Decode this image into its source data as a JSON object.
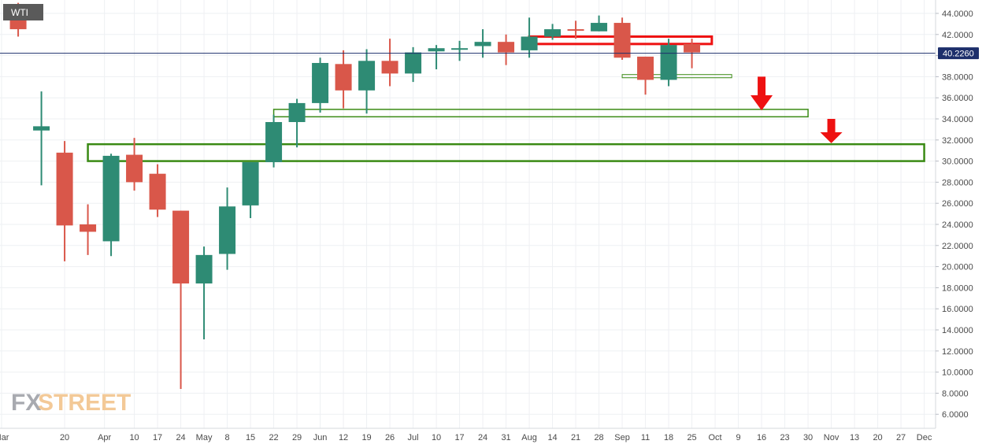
{
  "chart_data": {
    "type": "candlestick",
    "symbol": "WTI",
    "brand": {
      "fx": "FX",
      "street": "STREET"
    },
    "ylim": [
      5,
      45
    ],
    "grid": true,
    "colors": {
      "up": "#2e8b74",
      "down": "#d9574a",
      "zone_red": "#ee1111",
      "zone_green": "#3a8a14",
      "arrow": "#ee1111",
      "price_line": "#1d2f6b"
    },
    "price_line": {
      "value": 40.226,
      "label": "40.2260"
    },
    "yticks": [
      "6.0000",
      "8.0000",
      "10.0000",
      "12.0000",
      "14.0000",
      "16.0000",
      "18.0000",
      "20.0000",
      "22.0000",
      "24.0000",
      "26.0000",
      "28.0000",
      "30.0000",
      "32.0000",
      "34.0000",
      "36.0000",
      "38.0000",
      "40.0000",
      "42.0000",
      "44.0000"
    ],
    "xticks": [
      {
        "label": "Mar",
        "date": "2020-03-01"
      },
      {
        "label": "20",
        "date": "2020-03-20"
      },
      {
        "label": "Apr",
        "date": "2020-04-01"
      },
      {
        "label": "10",
        "date": "2020-04-10"
      },
      {
        "label": "17",
        "date": "2020-04-17"
      },
      {
        "label": "24",
        "date": "2020-04-24"
      },
      {
        "label": "May",
        "date": "2020-05-01"
      },
      {
        "label": "8",
        "date": "2020-05-08"
      },
      {
        "label": "15",
        "date": "2020-05-15"
      },
      {
        "label": "22",
        "date": "2020-05-22"
      },
      {
        "label": "29",
        "date": "2020-05-29"
      },
      {
        "label": "Jun",
        "date": "2020-06-05"
      },
      {
        "label": "12",
        "date": "2020-06-12"
      },
      {
        "label": "19",
        "date": "2020-06-19"
      },
      {
        "label": "26",
        "date": "2020-06-26"
      },
      {
        "label": "Jul",
        "date": "2020-07-03"
      },
      {
        "label": "10",
        "date": "2020-07-10"
      },
      {
        "label": "17",
        "date": "2020-07-17"
      },
      {
        "label": "24",
        "date": "2020-07-24"
      },
      {
        "label": "31",
        "date": "2020-07-31"
      },
      {
        "label": "Aug",
        "date": "2020-08-07"
      },
      {
        "label": "14",
        "date": "2020-08-14"
      },
      {
        "label": "21",
        "date": "2020-08-21"
      },
      {
        "label": "28",
        "date": "2020-08-28"
      },
      {
        "label": "Sep",
        "date": "2020-09-04"
      },
      {
        "label": "11",
        "date": "2020-09-11"
      },
      {
        "label": "18",
        "date": "2020-09-18"
      },
      {
        "label": "25",
        "date": "2020-09-25"
      },
      {
        "label": "Oct",
        "date": "2020-10-02"
      },
      {
        "label": "9",
        "date": "2020-10-09"
      },
      {
        "label": "16",
        "date": "2020-10-16"
      },
      {
        "label": "23",
        "date": "2020-10-23"
      },
      {
        "label": "30",
        "date": "2020-10-30"
      },
      {
        "label": "Nov",
        "date": "2020-11-06"
      },
      {
        "label": "13",
        "date": "2020-11-13"
      },
      {
        "label": "20",
        "date": "2020-11-20"
      },
      {
        "label": "27",
        "date": "2020-11-27"
      },
      {
        "label": "Dec",
        "date": "2020-12-04"
      }
    ],
    "candles": [
      {
        "date": "2020-03-06",
        "open": 44.2,
        "high": 45.0,
        "low": 41.8,
        "close": 42.5
      },
      {
        "date": "2020-03-13",
        "open": 32.9,
        "high": 36.6,
        "low": 27.7,
        "close": 33.3
      },
      {
        "date": "2020-03-20",
        "open": 30.8,
        "high": 31.9,
        "low": 20.5,
        "close": 23.9
      },
      {
        "date": "2020-03-27",
        "open": 24.0,
        "high": 25.9,
        "low": 21.1,
        "close": 23.3
      },
      {
        "date": "2020-04-03",
        "open": 22.4,
        "high": 30.7,
        "low": 21.0,
        "close": 30.5
      },
      {
        "date": "2020-04-10",
        "open": 30.6,
        "high": 32.2,
        "low": 27.2,
        "close": 28.0
      },
      {
        "date": "2020-04-17",
        "open": 28.8,
        "high": 29.7,
        "low": 24.7,
        "close": 25.4
      },
      {
        "date": "2020-04-24",
        "open": 25.3,
        "high": 25.3,
        "low": 8.4,
        "close": 18.4
      },
      {
        "date": "2020-05-01",
        "open": 18.4,
        "high": 21.9,
        "low": 13.1,
        "close": 21.1
      },
      {
        "date": "2020-05-08",
        "open": 21.2,
        "high": 27.5,
        "low": 19.7,
        "close": 25.7
      },
      {
        "date": "2020-05-15",
        "open": 25.8,
        "high": 29.9,
        "low": 24.6,
        "close": 29.9
      },
      {
        "date": "2020-05-22",
        "open": 29.9,
        "high": 34.4,
        "low": 29.4,
        "close": 33.7
      },
      {
        "date": "2020-05-29",
        "open": 33.7,
        "high": 35.9,
        "low": 31.3,
        "close": 35.5
      },
      {
        "date": "2020-06-05",
        "open": 35.5,
        "high": 39.8,
        "low": 34.6,
        "close": 39.3
      },
      {
        "date": "2020-06-12",
        "open": 39.2,
        "high": 40.5,
        "low": 35.0,
        "close": 36.7
      },
      {
        "date": "2020-06-19",
        "open": 36.7,
        "high": 40.6,
        "low": 34.5,
        "close": 39.5
      },
      {
        "date": "2020-06-26",
        "open": 39.5,
        "high": 41.6,
        "low": 37.1,
        "close": 38.3
      },
      {
        "date": "2020-07-03",
        "open": 38.3,
        "high": 40.8,
        "low": 37.5,
        "close": 40.3
      },
      {
        "date": "2020-07-10",
        "open": 40.4,
        "high": 41.0,
        "low": 38.7,
        "close": 40.7
      },
      {
        "date": "2020-07-17",
        "open": 40.7,
        "high": 41.4,
        "low": 39.5,
        "close": 40.7
      },
      {
        "date": "2020-07-24",
        "open": 40.9,
        "high": 42.5,
        "low": 39.8,
        "close": 41.3
      },
      {
        "date": "2020-07-31",
        "open": 41.3,
        "high": 42.0,
        "low": 39.1,
        "close": 40.3
      },
      {
        "date": "2020-08-07",
        "open": 40.5,
        "high": 43.6,
        "low": 39.8,
        "close": 41.8
      },
      {
        "date": "2020-08-14",
        "open": 41.8,
        "high": 43.0,
        "low": 41.5,
        "close": 42.5
      },
      {
        "date": "2020-08-21",
        "open": 42.5,
        "high": 43.3,
        "low": 41.6,
        "close": 42.4
      },
      {
        "date": "2020-08-28",
        "open": 42.3,
        "high": 43.8,
        "low": 42.3,
        "close": 43.1
      },
      {
        "date": "2020-09-04",
        "open": 43.1,
        "high": 43.6,
        "low": 39.6,
        "close": 39.8
      },
      {
        "date": "2020-09-11",
        "open": 39.9,
        "high": 39.9,
        "low": 36.3,
        "close": 37.7
      },
      {
        "date": "2020-09-18",
        "open": 37.7,
        "high": 41.6,
        "low": 37.1,
        "close": 41.0
      },
      {
        "date": "2020-09-25",
        "open": 41.1,
        "high": 41.6,
        "low": 38.8,
        "close": 40.3
      }
    ],
    "zones": [
      {
        "color": "red",
        "date_start": "2020-08-07",
        "date_end": "2020-10-01",
        "low": 41.1,
        "high": 41.8,
        "stroke": 3
      },
      {
        "color": "green",
        "date_start": "2020-09-04",
        "date_end": "2020-10-07",
        "low": 37.9,
        "high": 38.2,
        "stroke": 1
      },
      {
        "color": "green",
        "date_start": "2020-05-22",
        "date_end": "2020-10-30",
        "low": 34.2,
        "high": 34.9,
        "stroke": 1.5
      },
      {
        "color": "green",
        "date_start": "2020-03-27",
        "date_end": "2020-12-04",
        "low": 30.0,
        "high": 31.6,
        "stroke": 2.5
      }
    ],
    "arrows": [
      {
        "date": "2020-10-16",
        "top": 38.0,
        "bottom": 34.8
      },
      {
        "date": "2020-11-06",
        "top": 34.0,
        "bottom": 31.7
      }
    ]
  }
}
